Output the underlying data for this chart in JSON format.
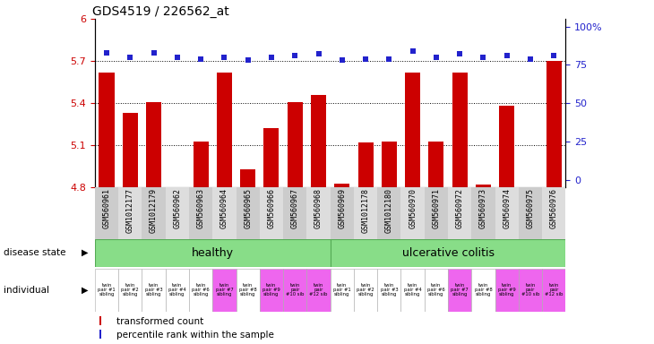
{
  "title": "GDS4519 / 226562_at",
  "samples": [
    "GSM560961",
    "GSM1012177",
    "GSM1012179",
    "GSM560962",
    "GSM560963",
    "GSM560964",
    "GSM560965",
    "GSM560966",
    "GSM560967",
    "GSM560968",
    "GSM560969",
    "GSM1012178",
    "GSM1012180",
    "GSM560970",
    "GSM560971",
    "GSM560972",
    "GSM560973",
    "GSM560974",
    "GSM560975",
    "GSM560976"
  ],
  "bar_values": [
    5.62,
    5.33,
    5.41,
    4.79,
    5.13,
    5.62,
    4.93,
    5.22,
    5.41,
    5.46,
    4.83,
    5.12,
    5.13,
    5.62,
    5.13,
    5.62,
    4.82,
    5.38,
    4.8,
    5.7
  ],
  "percentile_values": [
    83,
    80,
    83,
    80,
    79,
    80,
    78,
    80,
    81,
    82,
    78,
    79,
    79,
    84,
    80,
    82,
    80,
    81,
    79,
    81
  ],
  "individual_labels": [
    "twin\npair #1\nsibling",
    "twin\npair #2\nsibling",
    "twin\npair #3\nsibling",
    "twin\npair #4\nsibling",
    "twin\npair #6\nsibling",
    "twin\npair #7\nsibling",
    "twin\npair #8\nsibling",
    "twin\npair #9\nsibling",
    "twin\npair\n#10 sib",
    "twin\npair\n#12 sib",
    "twin\npair #1\nsibling",
    "twin\npair #2\nsibling",
    "twin\npair #3\nsibling",
    "twin\npair #4\nsibling",
    "twin\npair #6\nsibling",
    "twin\npair #7\nsibling",
    "twin\npair #8\nsibling",
    "twin\npair #9\nsibling",
    "twin\npair\n#10 sib",
    "twin\npair\n#12 sib"
  ],
  "ylim": [
    4.8,
    6.0
  ],
  "yticks": [
    4.8,
    5.1,
    5.4,
    5.7,
    6.0
  ],
  "ytick_labels": [
    "4.8",
    "5.1",
    "5.4",
    "5.7",
    "6"
  ],
  "y2ticks": [
    0,
    25,
    50,
    75,
    100
  ],
  "y2tick_labels": [
    "0",
    "25",
    "50",
    "75",
    "100%"
  ],
  "hlines": [
    5.1,
    5.4,
    5.7
  ],
  "bar_color": "#cc0000",
  "scatter_color": "#2222cc",
  "healthy_color": "#88dd88",
  "uc_color": "#44bb44",
  "cell_pink": "#ee66ee",
  "cell_white": "#ffffff",
  "grey_bg": "#cccccc",
  "bar_width": 0.65,
  "n_healthy": 10,
  "n_uc": 10,
  "ind_cell_colors": [
    "#ffffff",
    "#ffffff",
    "#ffffff",
    "#ffffff",
    "#ffffff",
    "#ee66ee",
    "#ffffff",
    "#ee66ee",
    "#ee66ee",
    "#ee66ee",
    "#ffffff",
    "#ffffff",
    "#ffffff",
    "#ffffff",
    "#ffffff",
    "#ee66ee",
    "#ffffff",
    "#ee66ee",
    "#ee66ee",
    "#ee66ee"
  ]
}
